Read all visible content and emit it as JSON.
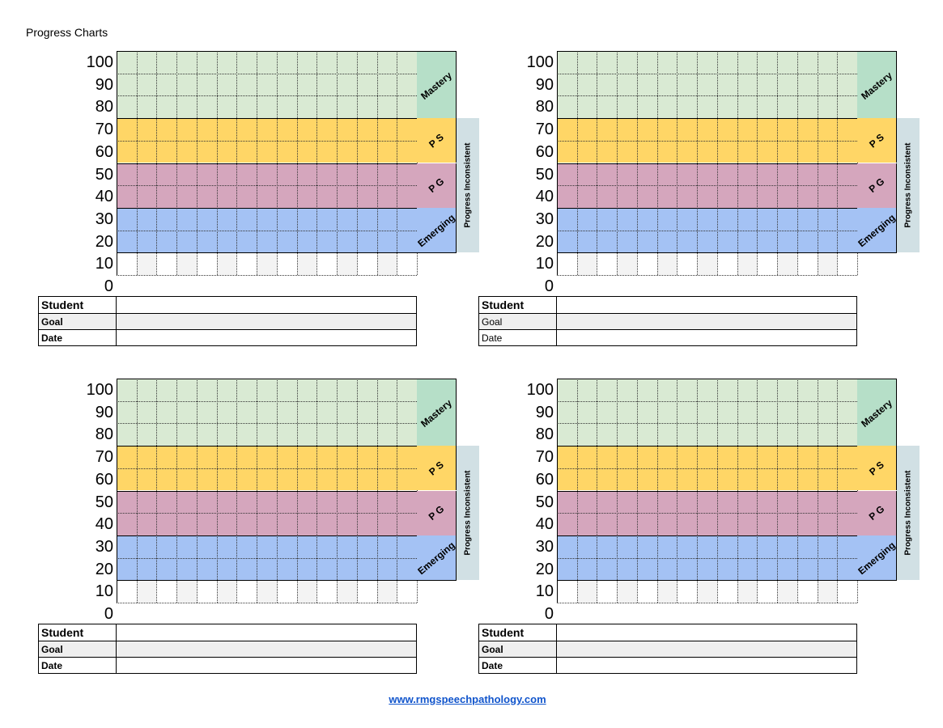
{
  "page_title": "Progress Charts",
  "footer": {
    "link_text": "www.rmgspeechpathology.com"
  },
  "y_axis_labels": [
    "100",
    "90",
    "80",
    "70",
    "60",
    "50",
    "40",
    "30",
    "20",
    "10",
    "0"
  ],
  "zones": {
    "mastery": "Mastery",
    "ps": "P S",
    "pg": "P G",
    "emerging": "Emerging",
    "progress_inconsistent": "Progress Inconsistent"
  },
  "colors": {
    "mastery": "#d9ead3",
    "mastery_label": "#b6dfc8",
    "ps": "#ffd666",
    "pg": "#d5a6bd",
    "emerging": "#a4c2f4",
    "progress_inconsistent": "#d1e0e4",
    "shaded_column": "#f3f3f3"
  },
  "table_labels": {
    "student": "Student",
    "goal": "Goal",
    "date": "Date"
  },
  "charts": [
    {
      "name": "chart-top-left",
      "goal_bold": true,
      "date_bold": true
    },
    {
      "name": "chart-top-right",
      "goal_bold": false,
      "date_bold": false
    },
    {
      "name": "chart-bottom-left",
      "goal_bold": true,
      "date_bold": true
    },
    {
      "name": "chart-bottom-right",
      "goal_bold": true,
      "date_bold": true
    }
  ]
}
